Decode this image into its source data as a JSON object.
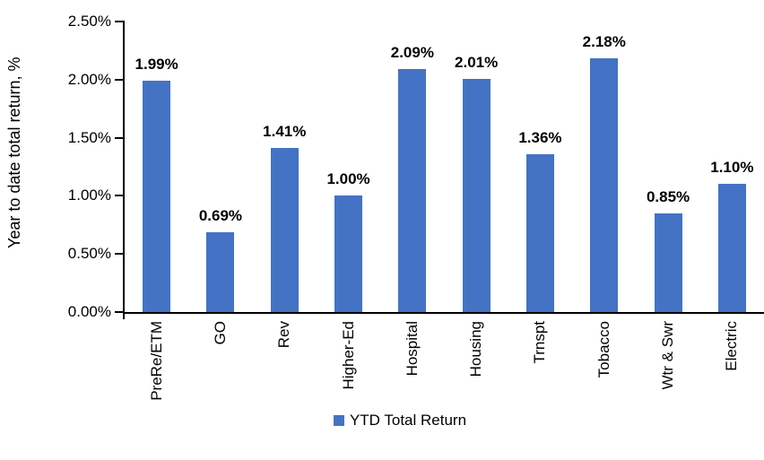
{
  "chart_data": {
    "type": "bar",
    "title": "",
    "xlabel": "",
    "ylabel": "Year to date total return, %",
    "categories": [
      "PreRe/ETM",
      "GO",
      "Rev",
      "Higher-Ed",
      "Hospital",
      "Housing",
      "Trnspt",
      "Tobacco",
      "Wtr & Swr",
      "Electric"
    ],
    "values": [
      1.99,
      0.69,
      1.41,
      1.0,
      2.09,
      2.01,
      1.36,
      2.18,
      0.85,
      1.1
    ],
    "data_labels": [
      "1.99%",
      "0.69%",
      "1.41%",
      "1.00%",
      "2.09%",
      "2.01%",
      "1.36%",
      "2.18%",
      "0.85%",
      "1.10%"
    ],
    "ylim": [
      0,
      2.5
    ],
    "y_ticks": [
      {
        "value": 0.0,
        "label": "0.00%"
      },
      {
        "value": 0.5,
        "label": "0.50%"
      },
      {
        "value": 1.0,
        "label": "1.00%"
      },
      {
        "value": 1.5,
        "label": "1.50%"
      },
      {
        "value": 2.0,
        "label": "2.00%"
      },
      {
        "value": 2.5,
        "label": "2.50%"
      }
    ],
    "grid": false,
    "legend": {
      "position": "bottom",
      "label": "YTD Total Return"
    },
    "colors": {
      "bar": "#4472C4",
      "axis": "#000000",
      "text": "#000000",
      "background": "#FFFFFF"
    }
  }
}
